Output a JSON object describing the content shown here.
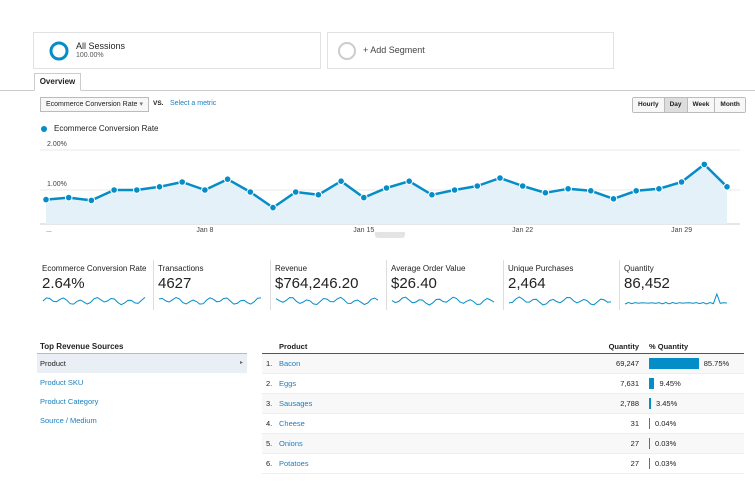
{
  "segments": [
    {
      "name": "All Sessions",
      "detail": "100.00%"
    },
    {
      "name": "+ Add Segment"
    }
  ],
  "tab": "Overview",
  "controls": {
    "metric": "Ecommerce Conversion Rate",
    "vs": "VS.",
    "select": "Select a metric",
    "periods": [
      "Hourly",
      "Day",
      "Week",
      "Month"
    ],
    "active_period": "Day"
  },
  "chart_data": {
    "type": "line",
    "categories": [
      "...",
      null,
      null,
      null,
      null,
      null,
      null,
      "Jan 8",
      null,
      null,
      null,
      null,
      null,
      null,
      "Jan 15",
      null,
      null,
      null,
      null,
      null,
      null,
      "Jan 22",
      null,
      null,
      null,
      null,
      null,
      null,
      "Jan 29",
      null,
      null
    ],
    "series": [
      {
        "name": "Ecommerce Conversion Rate",
        "color": "#058dc7",
        "values": [
          0.61,
          0.66,
          0.59,
          0.85,
          0.85,
          0.93,
          1.05,
          0.85,
          1.12,
          0.8,
          0.41,
          0.8,
          0.73,
          1.07,
          0.66,
          0.9,
          1.07,
          0.73,
          0.85,
          0.95,
          1.15,
          0.95,
          0.78,
          0.88,
          0.83,
          0.63,
          0.83,
          0.88,
          1.05,
          1.49,
          0.93
        ]
      }
    ],
    "ylim": [
      0,
      2.2
    ],
    "yticks": [
      {
        "value": 2,
        "label": "2.00%"
      },
      {
        "value": 1,
        "label": "1.00%"
      }
    ],
    "grid": true
  },
  "scorecards": [
    {
      "label": "Ecommerce Conversion Rate",
      "value": "2.64%"
    },
    {
      "label": "Transactions",
      "value": "4627"
    },
    {
      "label": "Revenue",
      "value": "$764,246.20"
    },
    {
      "label": "Average Order Value",
      "value": "$26.40"
    },
    {
      "label": "Unique Purchases",
      "value": "2,464"
    },
    {
      "label": "Quantity",
      "value": "86,452"
    }
  ],
  "sources": {
    "title": "Top Revenue Sources",
    "items": [
      "Product",
      "Product SKU",
      "Product Category",
      "Source / Medium"
    ],
    "selected": "Product"
  },
  "table": {
    "columns": [
      "Product",
      "Quantity",
      "% Quantity"
    ],
    "rows": [
      {
        "rank": "1.",
        "product": "Bacon",
        "quantity": "69,247",
        "percent": 85.75,
        "percent_label": "85.75%"
      },
      {
        "rank": "2.",
        "product": "Eggs",
        "quantity": "7,631",
        "percent": 9.45,
        "percent_label": "9.45%"
      },
      {
        "rank": "3.",
        "product": "Sausages",
        "quantity": "2,788",
        "percent": 3.45,
        "percent_label": "3.45%"
      },
      {
        "rank": "4.",
        "product": "Cheese",
        "quantity": "31",
        "percent": 0.04,
        "percent_label": "0.04%"
      },
      {
        "rank": "5.",
        "product": "Onions",
        "quantity": "27",
        "percent": 0.03,
        "percent_label": "0.03%"
      },
      {
        "rank": "6.",
        "product": "Potatoes",
        "quantity": "27",
        "percent": 0.03,
        "percent_label": "0.03%"
      }
    ]
  }
}
